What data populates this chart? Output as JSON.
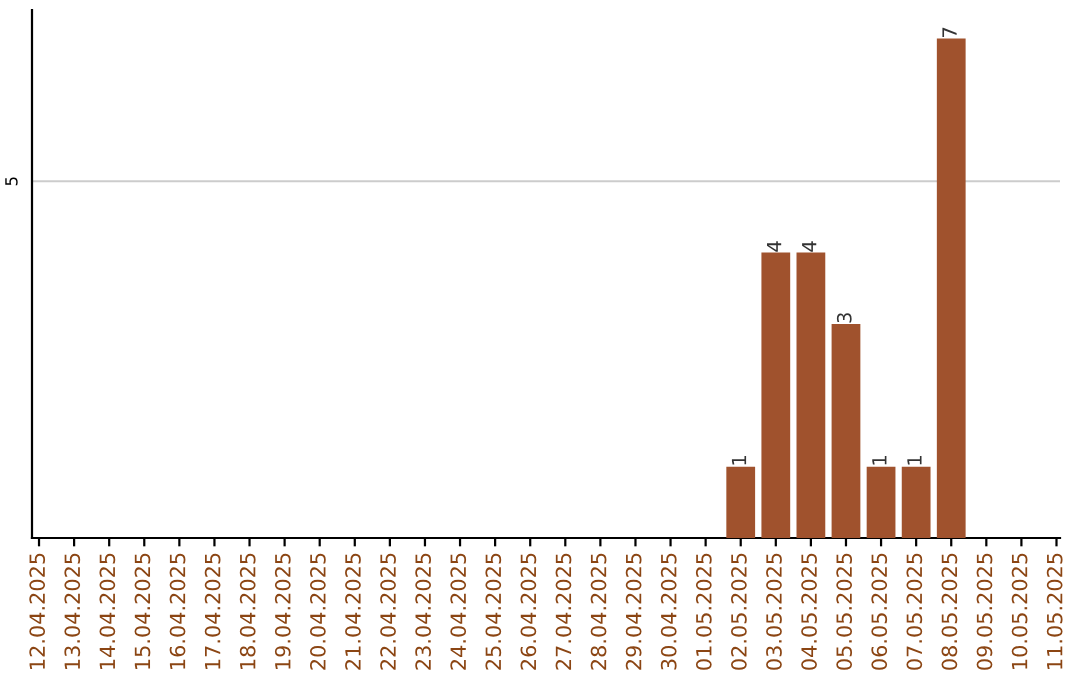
{
  "chart_data": {
    "type": "bar",
    "categories": [
      "12.04.2025",
      "13.04.2025",
      "14.04.2025",
      "15.04.2025",
      "16.04.2025",
      "17.04.2025",
      "18.04.2025",
      "19.04.2025",
      "20.04.2025",
      "21.04.2025",
      "22.04.2025",
      "23.04.2025",
      "24.04.2025",
      "25.04.2025",
      "26.04.2025",
      "27.04.2025",
      "28.04.2025",
      "29.04.2025",
      "30.04.2025",
      "01.05.2025",
      "02.05.2025",
      "03.05.2025",
      "04.05.2025",
      "05.05.2025",
      "06.05.2025",
      "07.05.2025",
      "08.05.2025",
      "09.05.2025",
      "10.05.2025",
      "11.05.2025"
    ],
    "values": [
      null,
      null,
      null,
      null,
      null,
      null,
      null,
      null,
      null,
      null,
      null,
      null,
      null,
      null,
      null,
      null,
      null,
      null,
      null,
      null,
      1,
      4,
      4,
      3,
      1,
      1,
      7,
      null,
      null,
      null
    ],
    "value_labels": [
      null,
      null,
      null,
      null,
      null,
      null,
      null,
      null,
      null,
      null,
      null,
      null,
      null,
      null,
      null,
      null,
      null,
      null,
      null,
      null,
      "1",
      "4",
      "4",
      "3",
      "1",
      "1",
      "7",
      null,
      null,
      null
    ],
    "color": "#a0522d",
    "ylim": [
      0,
      7.4
    ],
    "ref_lines": [
      {
        "axis": "y",
        "value": 5,
        "label": "5",
        "color": "#cccccc"
      }
    ]
  }
}
